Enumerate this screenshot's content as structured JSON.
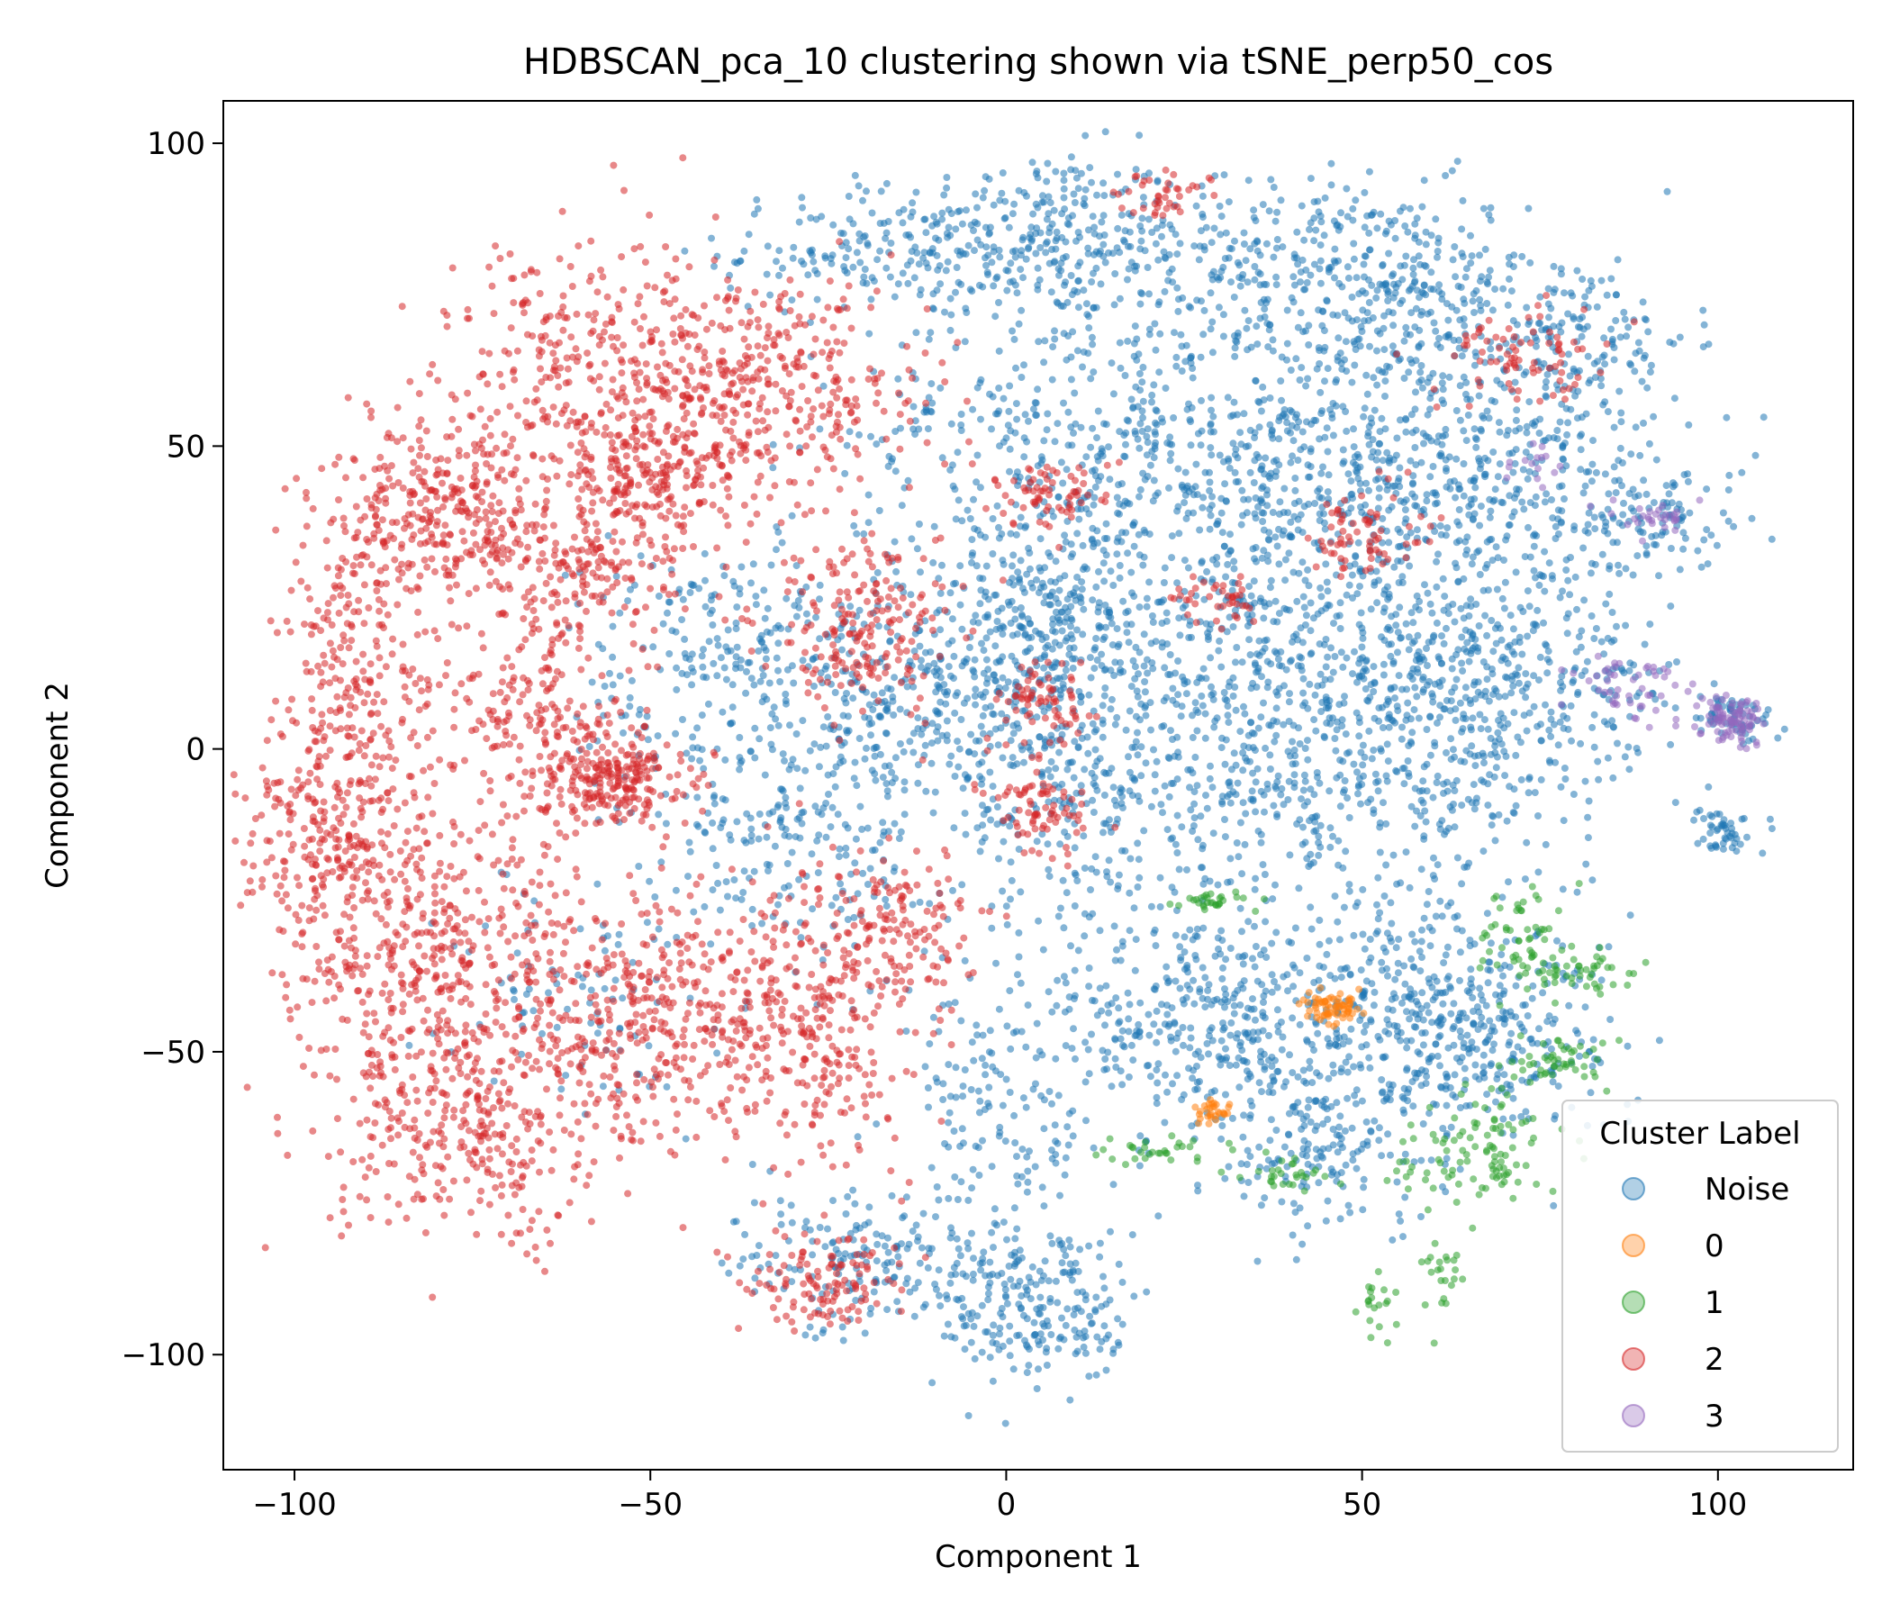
{
  "chart_data": {
    "type": "scatter",
    "title": "HDBSCAN_pca_10 clustering shown via tSNE_perp50_cos",
    "xlabel": "Component 1",
    "ylabel": "Component 2",
    "xlim": [
      -110,
      119
    ],
    "ylim": [
      -119,
      107
    ],
    "xticks": [
      -100,
      -50,
      0,
      50,
      100
    ],
    "xtick_labels": [
      "−100",
      "−50",
      "0",
      "50",
      "100"
    ],
    "yticks": [
      -100,
      -50,
      0,
      50,
      100
    ],
    "ytick_labels": [
      "−100",
      "−50",
      "0",
      "50",
      "100"
    ],
    "grid": false,
    "legend": {
      "title": "Cluster Label",
      "placement": "lower-right"
    },
    "series": [
      {
        "name": "Noise",
        "color": "#1f77b4",
        "regions": [
          {
            "cx": 5,
            "cy": 85,
            "sx": 10,
            "sy": 7,
            "n": 260
          },
          {
            "cx": -20,
            "cy": 82,
            "sx": 10,
            "sy": 5,
            "n": 140
          },
          {
            "cx": 35,
            "cy": 80,
            "sx": 11,
            "sy": 7,
            "n": 200
          },
          {
            "cx": 55,
            "cy": 75,
            "sx": 9,
            "sy": 9,
            "n": 240
          },
          {
            "cx": 78,
            "cy": 68,
            "sx": 9,
            "sy": 7,
            "n": 190
          },
          {
            "cx": 10,
            "cy": 52,
            "sx": 16,
            "sy": 13,
            "n": 420
          },
          {
            "cx": 45,
            "cy": 48,
            "sx": 13,
            "sy": 12,
            "n": 420
          },
          {
            "cx": 72,
            "cy": 42,
            "sx": 12,
            "sy": 11,
            "n": 320
          },
          {
            "cx": 92,
            "cy": 38,
            "sx": 6,
            "sy": 4,
            "n": 80
          },
          {
            "cx": 5,
            "cy": 18,
            "sx": 12,
            "sy": 11,
            "n": 460
          },
          {
            "cx": 38,
            "cy": 15,
            "sx": 13,
            "sy": 13,
            "n": 480
          },
          {
            "cx": 68,
            "cy": 12,
            "sx": 10,
            "sy": 10,
            "n": 320
          },
          {
            "cx": -15,
            "cy": 5,
            "sx": 11,
            "sy": 10,
            "n": 260
          },
          {
            "cx": 15,
            "cy": -10,
            "sx": 13,
            "sy": 10,
            "n": 280
          },
          {
            "cx": 55,
            "cy": -5,
            "sx": 14,
            "sy": 9,
            "n": 260
          },
          {
            "cx": -28,
            "cy": -15,
            "sx": 10,
            "sy": 10,
            "n": 180
          },
          {
            "cx": -40,
            "cy": 20,
            "sx": 10,
            "sy": 8,
            "n": 140
          },
          {
            "cx": 28,
            "cy": -45,
            "sx": 11,
            "sy": 10,
            "n": 380
          },
          {
            "cx": 55,
            "cy": -40,
            "sx": 10,
            "sy": 10,
            "n": 280
          },
          {
            "cx": 68,
            "cy": -48,
            "sx": 9,
            "sy": 8,
            "n": 220
          },
          {
            "cx": 45,
            "cy": -65,
            "sx": 9,
            "sy": 7,
            "n": 180
          },
          {
            "cx": -20,
            "cy": -85,
            "sx": 9,
            "sy": 6,
            "n": 180
          },
          {
            "cx": 5,
            "cy": -92,
            "sx": 7,
            "sy": 7,
            "n": 220
          },
          {
            "cx": 0,
            "cy": -60,
            "sx": 7,
            "sy": 12,
            "n": 140
          },
          {
            "cx": 102,
            "cy": 5,
            "sx": 3,
            "sy": 2,
            "n": 60
          },
          {
            "cx": 101,
            "cy": -13,
            "sx": 2,
            "sy": 2,
            "n": 50
          },
          {
            "cx": 85,
            "cy": 10,
            "sx": 4,
            "sy": 4,
            "n": 40
          },
          {
            "cx": -60,
            "cy": -40,
            "sx": 9,
            "sy": 10,
            "n": 90
          },
          {
            "cx": -45,
            "cy": 0,
            "sx": 8,
            "sy": 9,
            "n": 80
          }
        ]
      },
      {
        "name": "0",
        "color": "#ff7f0e",
        "regions": [
          {
            "cx": 46,
            "cy": -43,
            "sx": 2.2,
            "sy": 1.2,
            "n": 70
          },
          {
            "cx": 29,
            "cy": -60,
            "sx": 1.2,
            "sy": 1,
            "n": 30
          }
        ]
      },
      {
        "name": "1",
        "color": "#2ca02c",
        "regions": [
          {
            "cx": 29,
            "cy": -25,
            "sx": 3,
            "sy": 1,
            "n": 30
          },
          {
            "cx": 72,
            "cy": -30,
            "sx": 3,
            "sy": 4,
            "n": 50
          },
          {
            "cx": 80,
            "cy": -37,
            "sx": 4,
            "sy": 2,
            "n": 50
          },
          {
            "cx": 78,
            "cy": -52,
            "sx": 4,
            "sy": 2,
            "n": 50
          },
          {
            "cx": 65,
            "cy": -68,
            "sx": 5,
            "sy": 3,
            "n": 70
          },
          {
            "cx": 20,
            "cy": -66,
            "sx": 4,
            "sy": 1.5,
            "n": 30
          },
          {
            "cx": 40,
            "cy": -70,
            "sx": 3,
            "sy": 2,
            "n": 30
          },
          {
            "cx": 52,
            "cy": -92,
            "sx": 1.5,
            "sy": 3,
            "n": 20
          },
          {
            "cx": 62,
            "cy": -85,
            "sx": 2,
            "sy": 4,
            "n": 25
          },
          {
            "cx": 68,
            "cy": -62,
            "sx": 3,
            "sy": 3,
            "n": 30
          }
        ]
      },
      {
        "name": "2",
        "color": "#d62728",
        "regions": [
          {
            "cx": -80,
            "cy": 40,
            "sx": 8,
            "sy": 8,
            "n": 300
          },
          {
            "cx": -90,
            "cy": 15,
            "sx": 6,
            "sy": 12,
            "n": 200
          },
          {
            "cx": -95,
            "cy": -15,
            "sx": 6,
            "sy": 12,
            "n": 280
          },
          {
            "cx": -80,
            "cy": -35,
            "sx": 10,
            "sy": 12,
            "n": 420
          },
          {
            "cx": -75,
            "cy": -65,
            "sx": 10,
            "sy": 9,
            "n": 300
          },
          {
            "cx": -55,
            "cy": 65,
            "sx": 12,
            "sy": 10,
            "n": 360
          },
          {
            "cx": -50,
            "cy": 45,
            "sx": 9,
            "sy": 6,
            "n": 260
          },
          {
            "cx": -30,
            "cy": 60,
            "sx": 10,
            "sy": 9,
            "n": 260
          },
          {
            "cx": -60,
            "cy": 30,
            "sx": 8,
            "sy": 6,
            "n": 180
          },
          {
            "cx": -65,
            "cy": 5,
            "sx": 8,
            "sy": 9,
            "n": 200
          },
          {
            "cx": -55,
            "cy": -5,
            "sx": 5,
            "sy": 4,
            "n": 220
          },
          {
            "cx": -50,
            "cy": -45,
            "sx": 10,
            "sy": 10,
            "n": 360
          },
          {
            "cx": -28,
            "cy": -45,
            "sx": 8,
            "sy": 12,
            "n": 300
          },
          {
            "cx": -20,
            "cy": 20,
            "sx": 7,
            "sy": 7,
            "n": 200
          },
          {
            "cx": -15,
            "cy": -30,
            "sx": 5,
            "sy": 6,
            "n": 120
          },
          {
            "cx": 5,
            "cy": -10,
            "sx": 4,
            "sy": 4,
            "n": 80
          },
          {
            "cx": 5,
            "cy": 8,
            "sx": 3,
            "sy": 3,
            "n": 70
          },
          {
            "cx": 5,
            "cy": 42,
            "sx": 5,
            "sy": 3,
            "n": 70
          },
          {
            "cx": 50,
            "cy": 35,
            "sx": 4,
            "sy": 4,
            "n": 70
          },
          {
            "cx": 72,
            "cy": 65,
            "sx": 6,
            "sy": 4,
            "n": 80
          },
          {
            "cx": 22,
            "cy": 92,
            "sx": 3,
            "sy": 2,
            "n": 40
          },
          {
            "cx": -25,
            "cy": -88,
            "sx": 6,
            "sy": 4,
            "n": 120
          },
          {
            "cx": 30,
            "cy": 25,
            "sx": 3,
            "sy": 2,
            "n": 40
          }
        ]
      },
      {
        "name": "3",
        "color": "#9467bd",
        "regions": [
          {
            "cx": 102,
            "cy": 5,
            "sx": 2,
            "sy": 2,
            "n": 90
          },
          {
            "cx": 88,
            "cy": 10,
            "sx": 4,
            "sy": 3,
            "n": 50
          },
          {
            "cx": 93,
            "cy": 38,
            "sx": 3,
            "sy": 1.5,
            "n": 30
          },
          {
            "cx": 74,
            "cy": 47,
            "sx": 2,
            "sy": 2,
            "n": 15
          }
        ]
      }
    ]
  }
}
